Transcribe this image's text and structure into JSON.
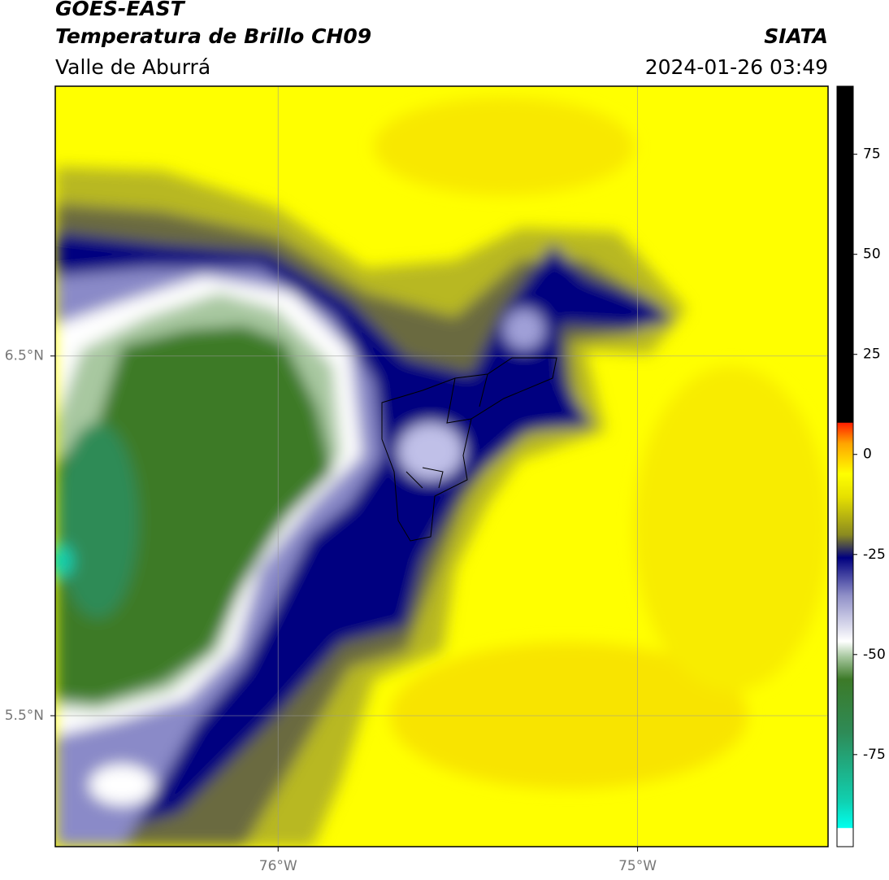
{
  "header": {
    "title": "GOES-EAST",
    "subtitle": "Temperatura de Brillo CH09",
    "region": "Valle de Aburrá",
    "source": "SIATA",
    "datetime": "2024-01-26 03:49"
  },
  "map": {
    "xlim": [
      -76.62,
      -74.47
    ],
    "ylim": [
      5.136,
      7.25
    ],
    "xticks": [
      {
        "value": -76,
        "label": "76°W"
      },
      {
        "value": -75,
        "label": "75°W"
      }
    ],
    "yticks": [
      {
        "value": 6.5,
        "label": "6.5°N"
      },
      {
        "value": 5.5,
        "label": "5.5°N"
      }
    ],
    "grid": true
  },
  "colorbar": {
    "lim": [
      -98,
      92
    ],
    "ticks": [
      75,
      50,
      25,
      0,
      -25,
      -50,
      -75
    ]
  }
}
